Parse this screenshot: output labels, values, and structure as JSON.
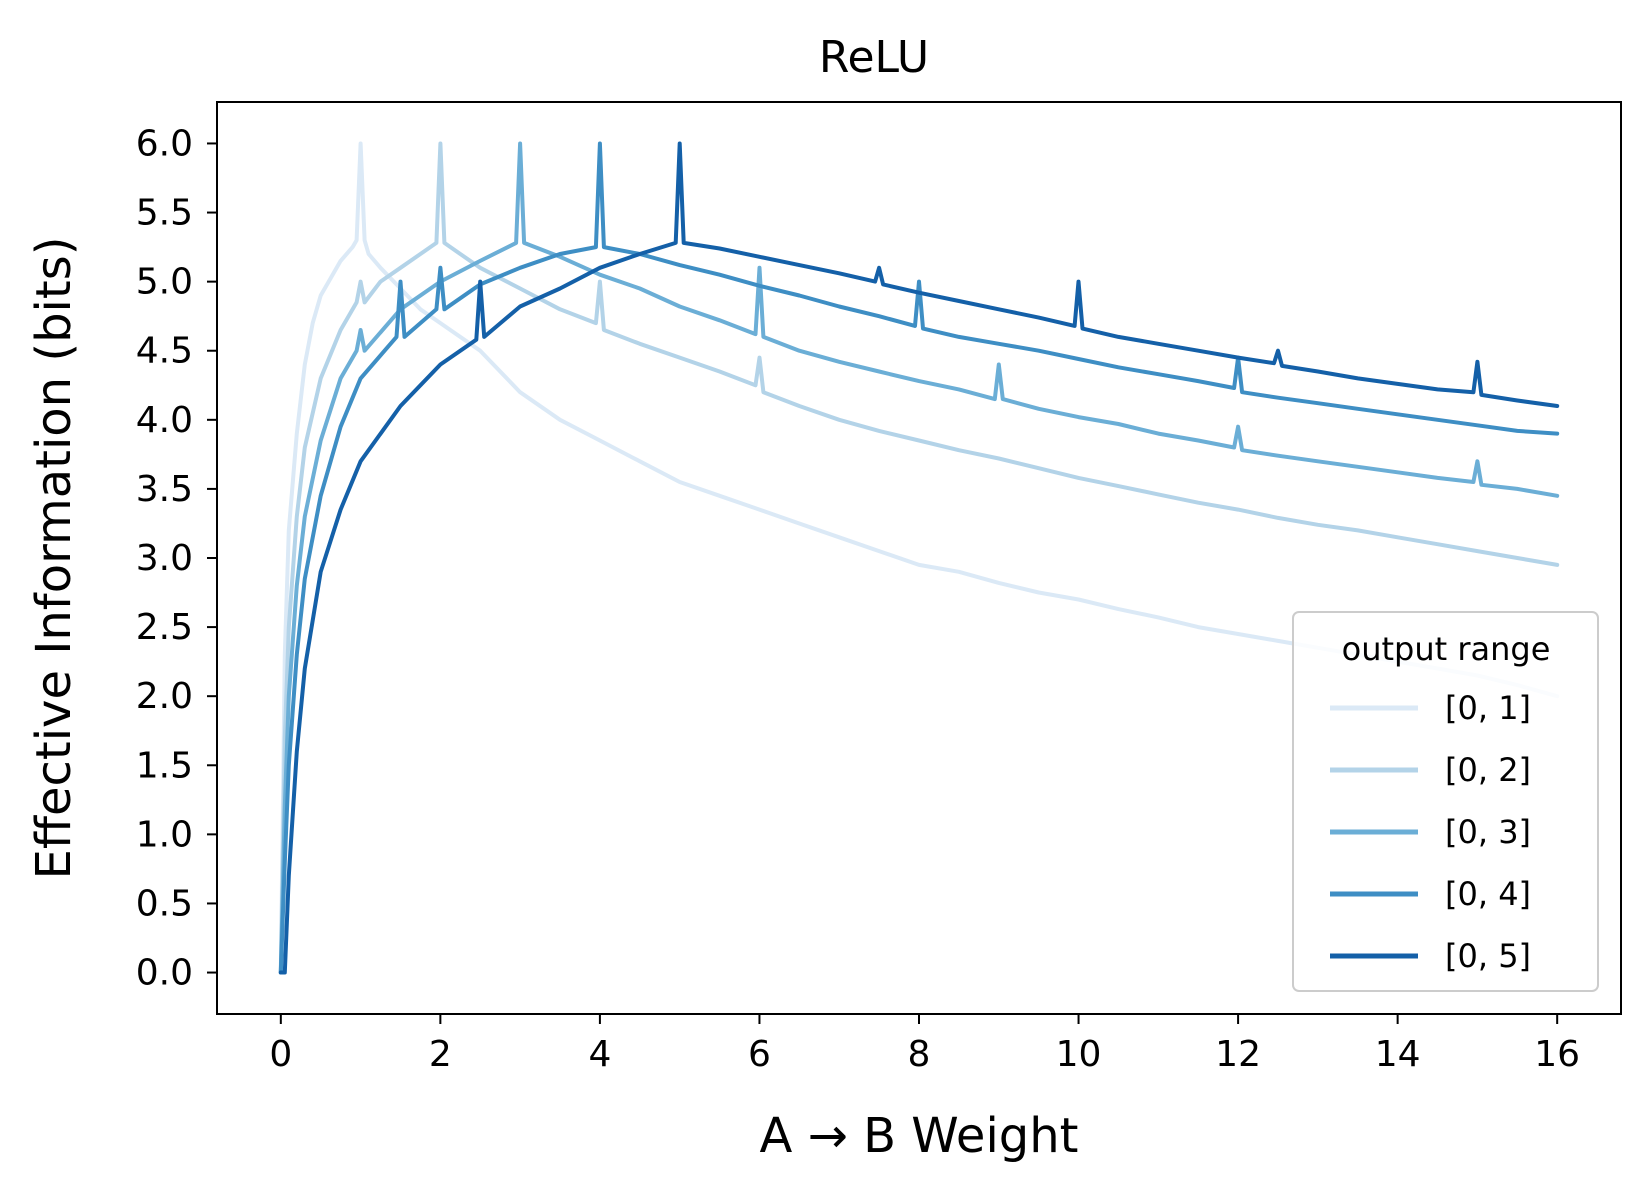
{
  "chart_data": {
    "type": "line",
    "title": "ReLU",
    "xlabel": "A → B Weight",
    "ylabel": "Effective Information (bits)",
    "xlim": [
      -0.8,
      16.8
    ],
    "ylim": [
      -0.3,
      6.3
    ],
    "x_ticks": [
      0,
      2,
      4,
      6,
      8,
      10,
      12,
      14,
      16
    ],
    "x_tick_labels": [
      "0",
      "2",
      "4",
      "6",
      "8",
      "10",
      "12",
      "14",
      "16"
    ],
    "y_ticks": [
      0.0,
      0.5,
      1.0,
      1.5,
      2.0,
      2.5,
      3.0,
      3.5,
      4.0,
      4.5,
      5.0,
      5.5,
      6.0
    ],
    "y_tick_labels": [
      "0.0",
      "0.5",
      "1.0",
      "1.5",
      "2.0",
      "2.5",
      "3.0",
      "3.5",
      "4.0",
      "4.5",
      "5.0",
      "5.5",
      "6.0"
    ],
    "grid": false,
    "legend": {
      "title": "output range",
      "position": "lower-right"
    },
    "series": [
      {
        "name": "[0, 1]",
        "color": "#dbe9f6",
        "x": [
          0,
          0.05,
          0.1,
          0.2,
          0.3,
          0.4,
          0.5,
          0.6,
          0.75,
          0.9,
          0.95,
          1.0,
          1.05,
          1.1,
          1.25,
          1.5,
          1.75,
          2.0,
          2.5,
          3.0,
          3.5,
          4.0,
          4.5,
          5.0,
          5.5,
          6.0,
          6.5,
          7.0,
          7.5,
          8.0,
          8.5,
          9.0,
          9.5,
          10.0,
          10.5,
          11.0,
          11.5,
          12.0,
          12.5,
          13.0,
          13.5,
          14.0,
          14.5,
          15.0,
          15.5,
          16.0
        ],
        "y": [
          0.0,
          2.3,
          3.2,
          3.9,
          4.4,
          4.7,
          4.9,
          5.0,
          5.15,
          5.25,
          5.3,
          6.0,
          5.3,
          5.2,
          5.1,
          4.95,
          4.8,
          4.7,
          4.5,
          4.2,
          4.0,
          3.85,
          3.7,
          3.55,
          3.45,
          3.35,
          3.25,
          3.15,
          3.05,
          2.95,
          2.9,
          2.82,
          2.75,
          2.7,
          2.63,
          2.57,
          2.5,
          2.45,
          2.4,
          2.35,
          2.3,
          2.25,
          2.2,
          2.15,
          2.08,
          2.0
        ]
      },
      {
        "name": "[0, 2]",
        "color": "#b3d3e8",
        "x": [
          0,
          0.05,
          0.1,
          0.2,
          0.3,
          0.5,
          0.75,
          0.95,
          1.0,
          1.05,
          1.25,
          1.5,
          1.75,
          1.95,
          2.0,
          2.05,
          2.25,
          2.5,
          3.0,
          3.5,
          3.95,
          4.0,
          4.05,
          4.5,
          5.0,
          5.5,
          5.95,
          6.0,
          6.05,
          6.5,
          7.0,
          7.5,
          8.0,
          8.5,
          9.0,
          9.5,
          10.0,
          10.5,
          11.0,
          11.5,
          12.0,
          12.5,
          13.0,
          13.5,
          14.0,
          14.5,
          15.0,
          15.5,
          16.0
        ],
        "y": [
          0.0,
          1.7,
          2.5,
          3.3,
          3.8,
          4.3,
          4.65,
          4.85,
          5.0,
          4.85,
          5.0,
          5.1,
          5.2,
          5.28,
          6.0,
          5.28,
          5.2,
          5.1,
          4.95,
          4.8,
          4.7,
          5.0,
          4.65,
          4.55,
          4.45,
          4.35,
          4.25,
          4.45,
          4.2,
          4.1,
          4.0,
          3.92,
          3.85,
          3.78,
          3.72,
          3.65,
          3.58,
          3.52,
          3.46,
          3.4,
          3.35,
          3.29,
          3.24,
          3.2,
          3.15,
          3.1,
          3.05,
          3.0,
          2.95
        ]
      },
      {
        "name": "[0, 3]",
        "color": "#6baed6",
        "x": [
          0,
          0.05,
          0.1,
          0.2,
          0.3,
          0.5,
          0.75,
          0.95,
          1.0,
          1.05,
          1.5,
          2.0,
          2.5,
          2.95,
          3.0,
          3.05,
          3.5,
          4.0,
          4.5,
          5.0,
          5.5,
          5.95,
          6.0,
          6.05,
          6.5,
          7.0,
          7.5,
          8.0,
          8.5,
          8.95,
          9.0,
          9.05,
          9.5,
          10.0,
          10.5,
          11.0,
          11.5,
          11.95,
          12.0,
          12.05,
          12.5,
          13.0,
          13.5,
          14.0,
          14.5,
          14.95,
          15.0,
          15.05,
          15.5,
          16.0
        ],
        "y": [
          0.0,
          1.2,
          2.0,
          2.8,
          3.3,
          3.85,
          4.3,
          4.5,
          4.65,
          4.5,
          4.8,
          5.0,
          5.15,
          5.28,
          6.0,
          5.28,
          5.18,
          5.05,
          4.95,
          4.82,
          4.72,
          4.62,
          5.1,
          4.6,
          4.5,
          4.42,
          4.35,
          4.28,
          4.22,
          4.15,
          4.4,
          4.15,
          4.08,
          4.02,
          3.97,
          3.9,
          3.85,
          3.8,
          3.95,
          3.78,
          3.74,
          3.7,
          3.66,
          3.62,
          3.58,
          3.55,
          3.7,
          3.53,
          3.5,
          3.45
        ]
      },
      {
        "name": "[0, 4]",
        "color": "#3e8ec4",
        "x": [
          0,
          0.05,
          0.1,
          0.2,
          0.3,
          0.5,
          0.75,
          1.0,
          1.45,
          1.5,
          1.55,
          1.95,
          2.0,
          2.05,
          2.5,
          3.0,
          3.5,
          3.95,
          4.0,
          4.05,
          4.5,
          5.0,
          5.5,
          6.0,
          6.5,
          7.0,
          7.5,
          7.95,
          8.0,
          8.05,
          8.5,
          9.0,
          9.5,
          10.0,
          10.5,
          11.0,
          11.5,
          11.95,
          12.0,
          12.05,
          12.5,
          13.0,
          13.5,
          14.0,
          14.5,
          15.0,
          15.5,
          16.0
        ],
        "y": [
          0.0,
          0.8,
          1.5,
          2.3,
          2.85,
          3.45,
          3.95,
          4.3,
          4.6,
          5.0,
          4.6,
          4.8,
          5.1,
          4.8,
          4.98,
          5.1,
          5.2,
          5.25,
          6.0,
          5.25,
          5.2,
          5.12,
          5.05,
          4.97,
          4.9,
          4.82,
          4.75,
          4.68,
          5.0,
          4.66,
          4.6,
          4.55,
          4.5,
          4.44,
          4.38,
          4.33,
          4.28,
          4.23,
          4.45,
          4.2,
          4.16,
          4.12,
          4.08,
          4.04,
          4.0,
          3.96,
          3.92,
          3.9
        ]
      },
      {
        "name": "[0, 5]",
        "color": "#1460a8",
        "x": [
          0,
          0.05,
          0.1,
          0.2,
          0.3,
          0.5,
          0.75,
          1.0,
          1.5,
          2.0,
          2.45,
          2.5,
          2.55,
          3.0,
          3.5,
          4.0,
          4.5,
          4.95,
          5.0,
          5.05,
          5.5,
          6.0,
          6.5,
          7.0,
          7.45,
          7.5,
          7.55,
          8.0,
          8.5,
          9.0,
          9.5,
          9.95,
          10.0,
          10.05,
          10.5,
          11.0,
          11.5,
          12.0,
          12.45,
          12.5,
          12.55,
          13.0,
          13.5,
          14.0,
          14.5,
          14.95,
          15.0,
          15.05,
          15.5,
          16.0
        ],
        "y": [
          0.0,
          0.0,
          0.7,
          1.6,
          2.2,
          2.9,
          3.35,
          3.7,
          4.1,
          4.4,
          4.58,
          5.0,
          4.6,
          4.82,
          4.95,
          5.1,
          5.2,
          5.28,
          6.0,
          5.28,
          5.24,
          5.18,
          5.12,
          5.06,
          5.0,
          5.1,
          4.98,
          4.92,
          4.86,
          4.8,
          4.74,
          4.68,
          5.0,
          4.66,
          4.6,
          4.55,
          4.5,
          4.45,
          4.41,
          4.5,
          4.39,
          4.35,
          4.3,
          4.26,
          4.22,
          4.2,
          4.42,
          4.18,
          4.14,
          4.1
        ]
      }
    ]
  }
}
